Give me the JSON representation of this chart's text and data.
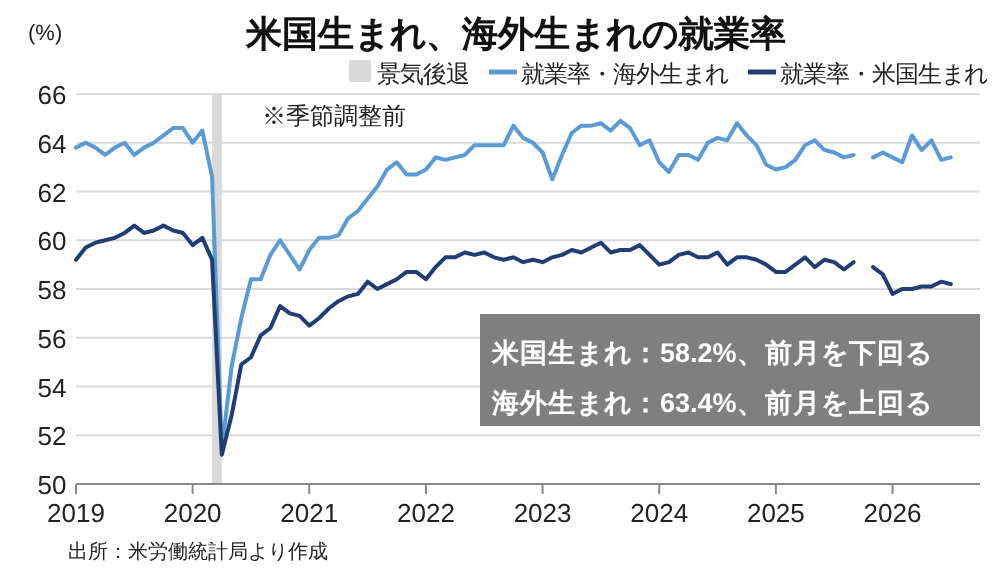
{
  "chart_data": {
    "type": "line",
    "title": "米国生まれ、海外生まれの就業率",
    "ylabel": "(%)",
    "x": [
      "2019-01",
      "2019-02",
      "2019-03",
      "2019-04",
      "2019-05",
      "2019-06",
      "2019-07",
      "2019-08",
      "2019-09",
      "2019-10",
      "2019-11",
      "2019-12",
      "2020-01",
      "2020-02",
      "2020-03",
      "2020-04",
      "2020-05",
      "2020-06",
      "2020-07",
      "2020-08",
      "2020-09",
      "2020-10",
      "2020-11",
      "2020-12",
      "2021-01",
      "2021-02",
      "2021-03",
      "2021-04",
      "2021-05",
      "2021-06",
      "2021-07",
      "2021-08",
      "2021-09",
      "2021-10",
      "2021-11",
      "2021-12",
      "2022-01",
      "2022-02",
      "2022-03",
      "2022-04",
      "2022-05",
      "2022-06",
      "2022-07",
      "2022-08",
      "2022-09",
      "2022-10",
      "2022-11",
      "2022-12",
      "2023-01",
      "2023-02",
      "2023-03",
      "2023-04",
      "2023-05",
      "2023-06",
      "2023-07",
      "2023-08",
      "2023-09",
      "2023-10",
      "2023-11",
      "2023-12",
      "2024-01",
      "2024-02",
      "2024-03",
      "2024-04",
      "2024-05",
      "2024-06",
      "2024-07",
      "2024-08",
      "2024-09",
      "2024-10",
      "2024-11",
      "2024-12",
      "2025-01",
      "2025-02",
      "2025-03",
      "2025-04",
      "2025-05",
      "2025-06",
      "2025-07",
      "2025-08",
      "2025-09",
      "2025-10",
      "2025-11",
      "2025-12",
      "2026-01",
      "2026-02",
      "2026-03",
      "2026-04",
      "2026-05",
      "2026-06",
      "2026-07"
    ],
    "series": [
      {
        "name": "就業率・海外生まれ",
        "color": "#5b9bd5",
        "values": [
          63.8,
          64.0,
          63.8,
          63.5,
          63.8,
          64.0,
          63.5,
          63.8,
          64.0,
          64.3,
          64.6,
          64.6,
          64.0,
          64.5,
          62.6,
          51.4,
          54.8,
          56.8,
          58.4,
          58.4,
          59.4,
          60.0,
          59.4,
          58.8,
          59.6,
          60.1,
          60.1,
          60.2,
          60.9,
          61.2,
          61.7,
          62.2,
          62.9,
          63.2,
          62.7,
          62.7,
          62.9,
          63.4,
          63.3,
          63.4,
          63.5,
          63.9,
          63.9,
          63.9,
          63.9,
          64.7,
          64.2,
          64.0,
          63.6,
          62.5,
          63.5,
          64.4,
          64.7,
          64.7,
          64.8,
          64.5,
          64.9,
          64.6,
          63.9,
          64.1,
          63.2,
          62.8,
          63.5,
          63.5,
          63.3,
          64.0,
          64.2,
          64.1,
          64.8,
          64.3,
          63.9,
          63.1,
          62.9,
          63.0,
          63.3,
          63.9,
          64.1,
          63.7,
          63.6,
          63.4,
          63.5,
          null,
          63.4,
          63.6,
          63.4,
          63.2,
          64.3,
          63.7,
          64.1,
          63.3,
          63.4
        ]
      },
      {
        "name": "就業率・米国生まれ",
        "color": "#203d74",
        "values": [
          59.2,
          59.7,
          59.9,
          60.0,
          60.1,
          60.3,
          60.6,
          60.3,
          60.4,
          60.6,
          60.4,
          60.3,
          59.8,
          60.1,
          59.2,
          51.2,
          52.8,
          54.9,
          55.2,
          56.1,
          56.4,
          57.3,
          57.0,
          56.9,
          56.5,
          56.8,
          57.2,
          57.5,
          57.7,
          57.8,
          58.3,
          58.0,
          58.2,
          58.4,
          58.7,
          58.7,
          58.4,
          58.9,
          59.3,
          59.3,
          59.5,
          59.4,
          59.5,
          59.3,
          59.2,
          59.3,
          59.1,
          59.2,
          59.1,
          59.3,
          59.4,
          59.6,
          59.5,
          59.7,
          59.9,
          59.5,
          59.6,
          59.6,
          59.8,
          59.4,
          59.0,
          59.1,
          59.4,
          59.5,
          59.3,
          59.3,
          59.5,
          59.0,
          59.3,
          59.3,
          59.2,
          59.0,
          58.7,
          58.7,
          59.0,
          59.3,
          58.9,
          59.2,
          59.1,
          58.8,
          59.1,
          null,
          58.9,
          58.6,
          57.8,
          58.0,
          58.0,
          58.1,
          58.1,
          58.3,
          58.2
        ]
      }
    ],
    "bands": [
      {
        "axis": "x",
        "from": "2020-03",
        "to": "2020-04",
        "label": "景気後退",
        "color": "#d9d9d9"
      }
    ],
    "xlim": [
      "2019-01",
      "2026-10"
    ],
    "xticks": [
      "2019",
      "2020",
      "2021",
      "2022",
      "2023",
      "2024",
      "2025",
      "2026"
    ],
    "ylim": [
      50,
      66
    ],
    "yticks": [
      50,
      52,
      54,
      56,
      58,
      60,
      62,
      64,
      66
    ],
    "grid": "y",
    "legend": "top",
    "annotations": [
      "※季節調整前",
      "米国生まれ：58.2%、前月を下回る",
      "海外生まれ：63.4%、前月を上回る",
      "出所：米労働統計局より作成"
    ]
  }
}
